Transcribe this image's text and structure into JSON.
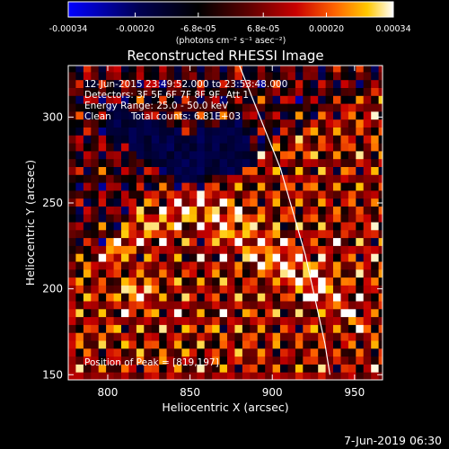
{
  "chart_data": {
    "type": "heatmap",
    "title": "Reconstructed RHESSI Image",
    "xlabel": "Heliocentric X (arcsec)",
    "ylabel": "Heliocentric Y (arcsec)",
    "xlim": [
      776,
      967
    ],
    "ylim": [
      147,
      330
    ],
    "x_ticks": [
      800,
      850,
      900,
      950
    ],
    "y_ticks": [
      150,
      200,
      250,
      300
    ],
    "x_tick_labels": [
      "800",
      "850",
      "900",
      "950"
    ],
    "y_tick_labels": [
      "150",
      "200",
      "250",
      "300"
    ],
    "colorbar": {
      "range": [
        -0.00034,
        0.00034
      ],
      "ticks": [
        -0.00034,
        -0.0002,
        -6.8e-05,
        6.8e-05,
        0.0002,
        0.00034
      ],
      "tick_labels": [
        "-0.00034",
        "-0.00020",
        "-6.8e-05",
        "6.8e-05",
        "0.00020",
        "0.00034"
      ],
      "unit_label": "(photons cm⁻² s⁻¹ asec⁻²)",
      "colormap": [
        "#0000ff",
        "#000050",
        "#000000",
        "#5a0000",
        "#c80000",
        "#ff6400",
        "#ffc800",
        "#ffffff"
      ]
    },
    "annotations": {
      "time_range": "12-Jun-2015 23:49:52.000 to 23:53:48.000",
      "detectors": "Detectors: 3F 5F 6F 7F 8F 9F, Att 1",
      "energy_range": "Energy Range: 25.0 - 50.0 keV",
      "clean_label": "Clean",
      "total_counts": "Total counts: 6.81E+03",
      "peak_position": "Position of Peak = [819,197]"
    },
    "peak": [
      819,
      197
    ],
    "limb_curve": [
      [
        880,
        330
      ],
      [
        905,
        270
      ],
      [
        920,
        220
      ],
      [
        932,
        168
      ],
      [
        935,
        150
      ]
    ],
    "regions": {
      "negative_lobe": [
        [
          800,
          310
        ],
        [
          850,
          290
        ],
        [
          880,
          300
        ],
        [
          890,
          270
        ],
        [
          845,
          262
        ],
        [
          800,
          290
        ]
      ],
      "bright_band": [
        [
          790,
          210
        ],
        [
          850,
          240
        ],
        [
          910,
          200
        ],
        [
          960,
          175
        ],
        [
          930,
          215
        ],
        [
          870,
          255
        ],
        [
          820,
          260
        ]
      ]
    }
  },
  "footer": {
    "timestamp": "7-Jun-2019 06:30"
  },
  "colors": {
    "background": "#000000",
    "foreground": "#ffffff",
    "limb_line": "#ffffff"
  }
}
